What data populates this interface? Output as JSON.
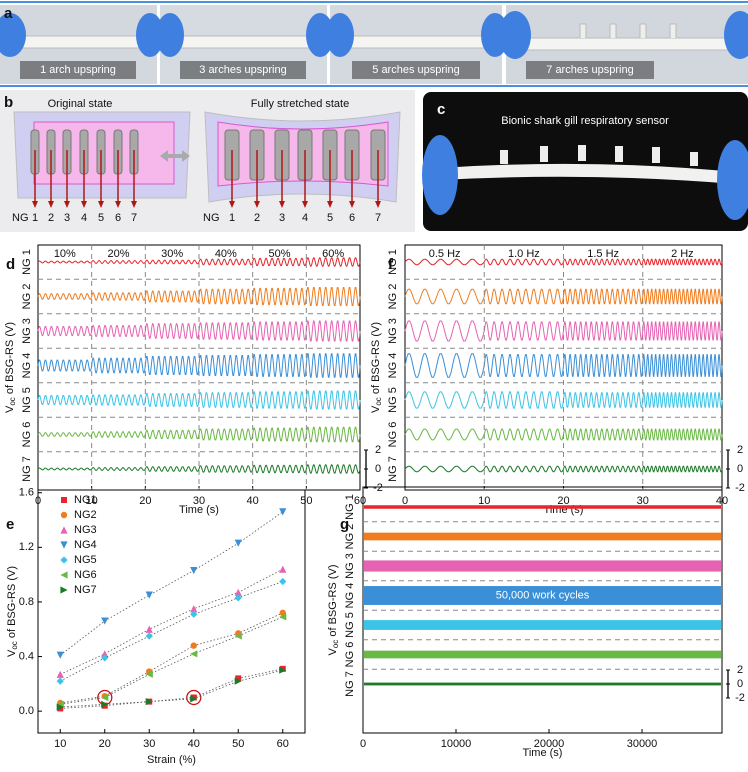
{
  "panels": {
    "a": {
      "label": "a",
      "captions": [
        "1 arch upspring",
        "3 arches upspring",
        "5 arches upspring",
        "7 arches upspring"
      ]
    },
    "b": {
      "label": "b",
      "left_title": "Original state",
      "right_title": "Fully stretched state",
      "ng": "NG",
      "numbers": [
        "1",
        "2",
        "3",
        "4",
        "5",
        "6",
        "7"
      ]
    },
    "c": {
      "label": "c",
      "caption": "Bionic shark gill respiratory sensor"
    }
  },
  "chart_data": [
    {
      "panel": "d",
      "type": "line",
      "categories": [
        "10%",
        "20%",
        "30%",
        "40%",
        "50%",
        "60%"
      ],
      "xlim": [
        0,
        60
      ],
      "xticks": [
        0,
        10,
        20,
        30,
        40,
        50,
        60
      ],
      "xlabel": "Time (s)",
      "ylabel": [
        "V",
        "oc",
        " of BSG-RS  (V)"
      ],
      "scale_bar": [
        2,
        0,
        -2
      ],
      "series": [
        {
          "name": "NG 1",
          "color": "#e8252a",
          "values": [
            0.1,
            0.15,
            0.2,
            0.3,
            0.4,
            0.45
          ]
        },
        {
          "name": "NG 2",
          "color": "#f07c1e",
          "values": [
            0.3,
            0.4,
            0.6,
            0.8,
            0.9,
            1.0
          ]
        },
        {
          "name": "NG 3",
          "color": "#e663b3",
          "values": [
            0.5,
            0.6,
            0.8,
            0.9,
            1.0,
            1.1
          ]
        },
        {
          "name": "NG 4",
          "color": "#3b8fd6",
          "values": [
            0.6,
            0.8,
            1.0,
            1.1,
            1.2,
            1.3
          ]
        },
        {
          "name": "NG 5",
          "color": "#3cc4e6",
          "values": [
            0.5,
            0.55,
            0.7,
            0.8,
            0.9,
            1.0
          ]
        },
        {
          "name": "NG 6",
          "color": "#6ab845",
          "values": [
            0.2,
            0.3,
            0.45,
            0.6,
            0.7,
            0.8
          ]
        },
        {
          "name": "NG 7",
          "color": "#1d7a2a",
          "values": [
            0.1,
            0.15,
            0.25,
            0.35,
            0.4,
            0.45
          ]
        }
      ]
    },
    {
      "panel": "f",
      "type": "line",
      "categories": [
        "0.5 Hz",
        "1.0 Hz",
        "1.5 Hz",
        "2 Hz"
      ],
      "xlim": [
        0,
        40
      ],
      "xticks": [
        0,
        10,
        20,
        30,
        40
      ],
      "xlabel": "Time (s)",
      "ylabel": [
        "V",
        "oc",
        " of BSG-RS  (V)"
      ],
      "scale_bar": [
        2,
        0,
        -2
      ],
      "series": [
        {
          "name": "NG 1",
          "color": "#e8252a",
          "values": [
            0.3,
            0.3,
            0.3,
            0.3
          ]
        },
        {
          "name": "NG 2",
          "color": "#f07c1e",
          "values": [
            0.8,
            0.8,
            0.8,
            0.8
          ]
        },
        {
          "name": "NG 3",
          "color": "#e663b3",
          "values": [
            1.1,
            1.0,
            1.0,
            1.0
          ]
        },
        {
          "name": "NG 4",
          "color": "#3b8fd6",
          "values": [
            1.3,
            1.2,
            1.2,
            1.2
          ]
        },
        {
          "name": "NG 5",
          "color": "#3cc4e6",
          "values": [
            0.9,
            0.9,
            0.8,
            0.8
          ]
        },
        {
          "name": "NG 6",
          "color": "#6ab845",
          "values": [
            0.6,
            0.6,
            0.6,
            0.6
          ]
        },
        {
          "name": "NG 7",
          "color": "#1d7a2a",
          "values": [
            0.3,
            0.3,
            0.3,
            0.3
          ]
        }
      ]
    },
    {
      "panel": "e",
      "type": "scatter",
      "x": [
        10,
        20,
        30,
        40,
        50,
        60
      ],
      "xlim": [
        5,
        65
      ],
      "xticks": [
        10,
        20,
        30,
        40,
        50,
        60
      ],
      "ylim": [
        -0.16,
        1.62
      ],
      "yticks": [
        {
          "value": 0,
          "label": "0.0"
        },
        0.4,
        0.8,
        1.2,
        1.6
      ],
      "xlabel": "Strain (%)",
      "ylabel": [
        "V",
        "oc",
        " of BSG-RS  (V)"
      ],
      "legend": "upper-left",
      "series": [
        {
          "name": "NG1",
          "color": "#e8252a",
          "marker": "square",
          "values": [
            0.02,
            0.04,
            0.07,
            0.1,
            0.24,
            0.31
          ]
        },
        {
          "name": "NG2",
          "color": "#f07c1e",
          "marker": "circle",
          "values": [
            0.06,
            0.11,
            0.29,
            0.48,
            0.57,
            0.72
          ]
        },
        {
          "name": "NG3",
          "color": "#e663b3",
          "marker": "triangle-up",
          "values": [
            0.27,
            0.42,
            0.6,
            0.75,
            0.87,
            1.04
          ]
        },
        {
          "name": "NG4",
          "color": "#3b8fd6",
          "marker": "triangle-down",
          "values": [
            0.41,
            0.66,
            0.85,
            1.03,
            1.23,
            1.46
          ]
        },
        {
          "name": "NG5",
          "color": "#3cc4e6",
          "marker": "diamond",
          "values": [
            0.22,
            0.39,
            0.55,
            0.71,
            0.83,
            0.95
          ]
        },
        {
          "name": "NG6",
          "color": "#6ab845",
          "marker": "triangle-left",
          "values": [
            0.05,
            0.1,
            0.27,
            0.42,
            0.55,
            0.69
          ]
        },
        {
          "name": "NG7",
          "color": "#1d7a2a",
          "marker": "triangle-right",
          "values": [
            0.03,
            0.05,
            0.07,
            0.09,
            0.22,
            0.3
          ]
        }
      ]
    },
    {
      "panel": "g",
      "type": "band",
      "xlim": [
        0,
        38600
      ],
      "xticks": [
        0,
        10000,
        20000,
        30000
      ],
      "xlabel": "Time (s)",
      "ylabel": [
        "V",
        "oc",
        " of BSG-RS  (V)"
      ],
      "annotation": "50,000 work cycles",
      "scale_bar": [
        2,
        0,
        -2
      ],
      "series": [
        {
          "name": "NG 1",
          "color": "#e8252a",
          "values": [
            0.25
          ]
        },
        {
          "name": "NG 2",
          "color": "#f07c1e",
          "values": [
            0.55
          ]
        },
        {
          "name": "NG 3",
          "color": "#e663b3",
          "values": [
            0.8
          ]
        },
        {
          "name": "NG 4",
          "color": "#3b8fd6",
          "values": [
            1.35
          ]
        },
        {
          "name": "NG 5",
          "color": "#3cc4e6",
          "values": [
            0.7
          ]
        },
        {
          "name": "NG 6",
          "color": "#6ab845",
          "values": [
            0.55
          ]
        },
        {
          "name": "NG 7",
          "color": "#1d7a2a",
          "values": [
            0.2
          ]
        }
      ]
    }
  ]
}
